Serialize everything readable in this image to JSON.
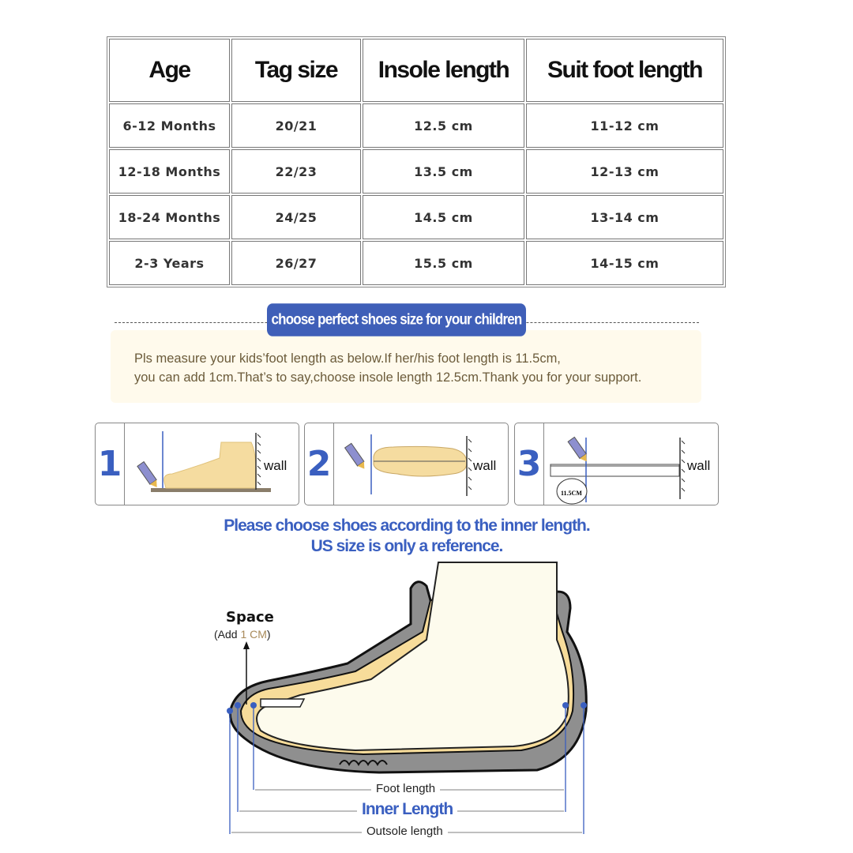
{
  "size_table": {
    "headers": [
      "Age",
      "Tag size",
      "Insole length",
      "Suit foot length"
    ],
    "rows": [
      [
        "6-12 Months",
        "20/21",
        "12.5 cm",
        "11-12 cm"
      ],
      [
        "12-18 Months",
        "22/23",
        "13.5 cm",
        "12-13 cm"
      ],
      [
        "18-24 Months",
        "24/25",
        "14.5 cm",
        "13-14 cm"
      ],
      [
        "2-3 Years",
        "26/27",
        "15.5 cm",
        "14-15 cm"
      ]
    ]
  },
  "banner": "choose perfect shoes size for your children",
  "instructions": [
    "Pls measure your kids’foot length as below.If her/his foot length is 11.5cm,",
    "you can add 1cm.That’s to say,choose insole length 12.5cm.Thank you for your support."
  ],
  "steps": [
    {
      "number": "1",
      "wall_label": "wall"
    },
    {
      "number": "2",
      "wall_label": "wall"
    },
    {
      "number": "3",
      "wall_label": "wall",
      "measurement": "11.5CM"
    }
  ],
  "headline": [
    "Please choose shoes according to the inner length.",
    "US size is only a reference."
  ],
  "diagram": {
    "space_label": "Space",
    "add_prefix": "(Add ",
    "add_value": "1 CM",
    "add_suffix": ")",
    "foot_length": "Foot length",
    "inner_length": "Inner Length",
    "outsole_length": "Outsole length"
  },
  "colors": {
    "accent_blue": "#3f5fb8",
    "note_bg": "#fffaec",
    "sole_gray": "#8a8a8a",
    "insole_yellow": "#f7dc9a"
  }
}
